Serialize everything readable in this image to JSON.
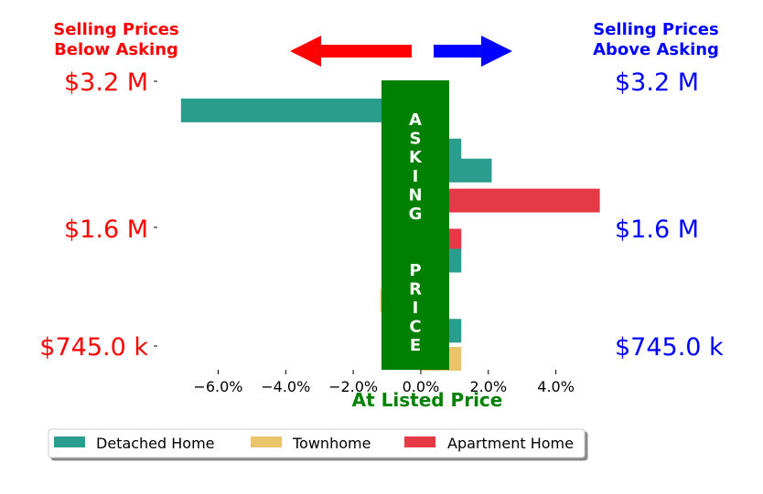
{
  "chart_data": {
    "type": "bar",
    "orientation": "horizontal",
    "header": {
      "left": [
        "Selling Prices",
        "Below Asking"
      ],
      "right": [
        "Selling Prices",
        "Above Asking"
      ]
    },
    "price_labels": [
      "$3.2 M",
      "$1.6 M",
      "$745.0 k"
    ],
    "center_band_label": "ASKING  PRICE",
    "xlabel": "At Listed Price",
    "xlim": [
      -7.8,
      5.5
    ],
    "x_ticks": [
      {
        "value": -6,
        "label": "−6.0%"
      },
      {
        "value": -4,
        "label": "−4.0%"
      },
      {
        "value": -2,
        "label": "−2.0%"
      },
      {
        "value": 0,
        "label": "0.0%"
      },
      {
        "value": 2,
        "label": "2.0%"
      },
      {
        "value": 4,
        "label": "4.0%"
      }
    ],
    "price_ticks": [
      {
        "label": "$3.2 M",
        "price": 3200000
      },
      {
        "label": "$1.6 M",
        "price": 1600000
      },
      {
        "label": "$745.0 k",
        "price": 745000
      }
    ],
    "ylim": [
      610000,
      3500000
    ],
    "series": [
      {
        "name": "Detached Home",
        "color": "#2a9d8f"
      },
      {
        "name": "Townhome",
        "color": "#e9c46a"
      },
      {
        "name": "Apartment Home",
        "color": "#e63946"
      }
    ],
    "bars": [
      {
        "price": 3200000,
        "value": -7.1,
        "series": "Detached Home"
      },
      {
        "price": 2800000,
        "value": 1.2,
        "series": "Detached Home"
      },
      {
        "price": 2600000,
        "value": 2.1,
        "series": "Detached Home"
      },
      {
        "price": 2300000,
        "value": 5.3,
        "series": "Apartment Home"
      },
      {
        "price": 1900000,
        "value": 1.2,
        "series": "Apartment Home"
      },
      {
        "price": 1700000,
        "value": 1.2,
        "series": "Detached Home"
      },
      {
        "price": 1300000,
        "value": -1.2,
        "series": "Townhome"
      },
      {
        "price": 1000000,
        "value": 1.2,
        "series": "Detached Home"
      },
      {
        "price": 720000,
        "value": 1.2,
        "series": "Townhome"
      }
    ],
    "legend": {
      "placement": "bottom",
      "items": [
        "Detached Home",
        "Townhome",
        "Apartment Home"
      ]
    },
    "colors": {
      "below": "#ff0000",
      "above": "#0000ff",
      "asking_band": "#008000"
    }
  }
}
